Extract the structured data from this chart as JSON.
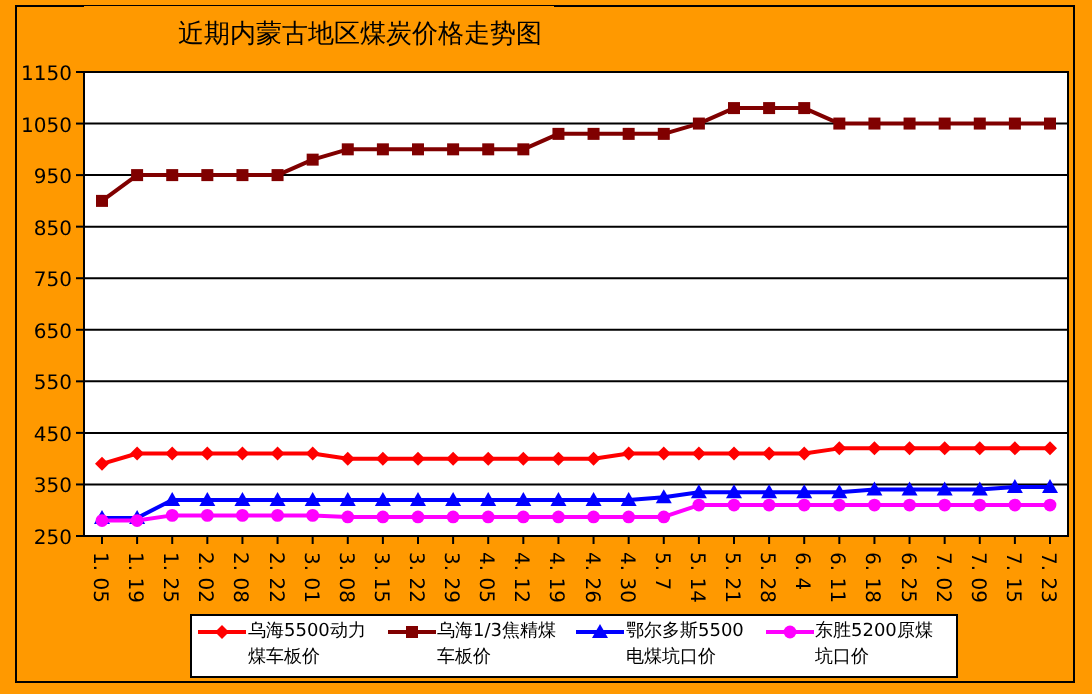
{
  "chart_data": {
    "type": "line",
    "title": "近期内蒙古地区煤炭价格走势图",
    "categories": [
      "1. 05",
      "1. 19",
      "1. 25",
      "2. 02",
      "2. 08",
      "2. 22",
      "3. 01",
      "3. 08",
      "3. 15",
      "3. 22",
      "3. 29",
      "4. 05",
      "4. 12",
      "4. 19",
      "4. 26",
      "4. 30",
      "5. 7",
      "5. 14",
      "5. 21",
      "5. 28",
      "6. 4",
      "6. 11",
      "6. 18",
      "6. 25",
      "7. 02",
      "7. 09",
      "7. 15",
      "7. 23"
    ],
    "series": [
      {
        "name": "乌海5500动力煤车板价",
        "color": "#ff0000",
        "marker": "diamond",
        "values": [
          390,
          410,
          410,
          410,
          410,
          410,
          410,
          400,
          400,
          400,
          400,
          400,
          400,
          400,
          400,
          410,
          410,
          410,
          410,
          410,
          410,
          420,
          420,
          420,
          420,
          420,
          420,
          420
        ]
      },
      {
        "name": "乌海1/3焦精煤车板价",
        "color": "#800000",
        "marker": "square",
        "values": [
          900,
          950,
          950,
          950,
          950,
          950,
          980,
          1000,
          1000,
          1000,
          1000,
          1000,
          1000,
          1030,
          1030,
          1030,
          1030,
          1050,
          1080,
          1080,
          1080,
          1050,
          1050,
          1050,
          1050,
          1050,
          1050,
          1050
        ]
      },
      {
        "name": "鄂尔多斯5500电煤坑口价",
        "color": "#0000ff",
        "marker": "triangle",
        "values": [
          285,
          285,
          320,
          320,
          320,
          320,
          320,
          320,
          320,
          320,
          320,
          320,
          320,
          320,
          320,
          320,
          325,
          335,
          335,
          335,
          335,
          335,
          340,
          340,
          340,
          340,
          345,
          345
        ]
      },
      {
        "name": "东胜5200原煤坑口价",
        "color": "#ff00ff",
        "marker": "circle",
        "values": [
          280,
          280,
          290,
          290,
          290,
          290,
          290,
          287,
          287,
          287,
          287,
          287,
          287,
          287,
          287,
          287,
          287,
          310,
          310,
          310,
          310,
          310,
          310,
          310,
          310,
          310,
          310,
          310
        ]
      }
    ],
    "ylim": [
      250,
      1150
    ],
    "yticks": [
      250,
      350,
      450,
      550,
      650,
      750,
      850,
      950,
      1050,
      1150
    ],
    "grid": "y",
    "legend": "bottom",
    "line_style": "solid"
  }
}
